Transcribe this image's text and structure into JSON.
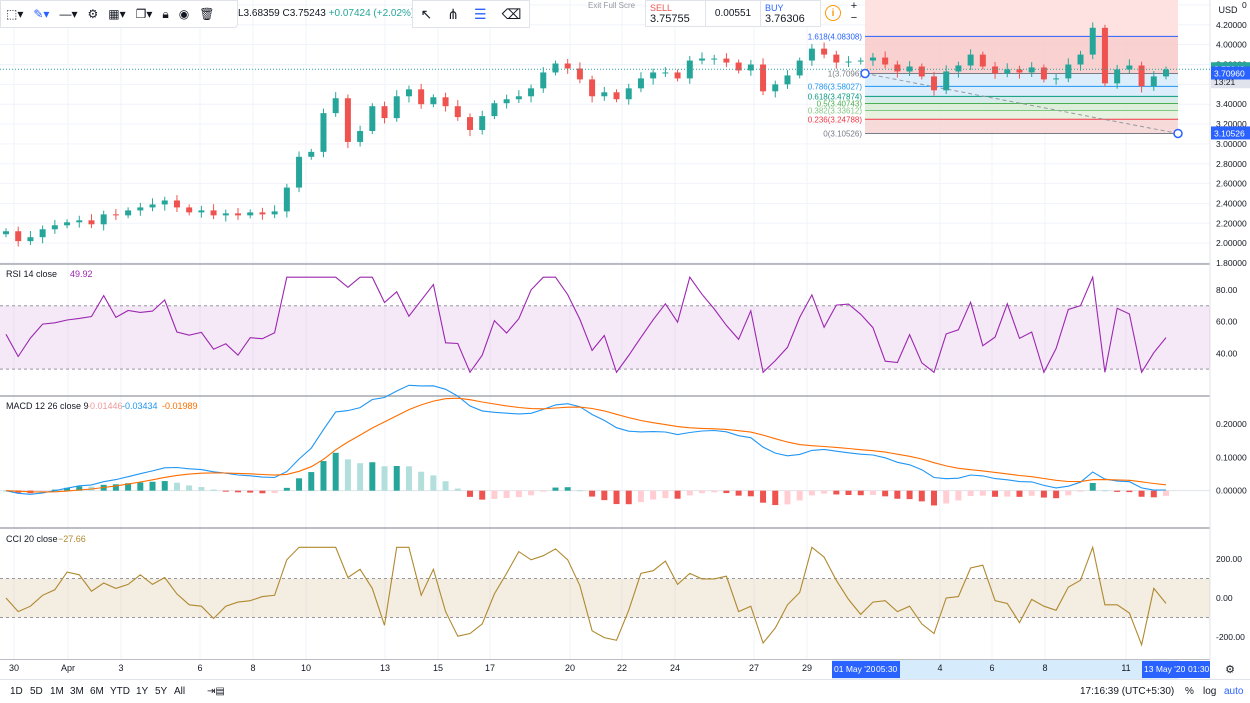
{
  "ohlc": {
    "low": "L3.68359",
    "close": "C3.75243",
    "change": "+0.07424 (+2.02%)"
  },
  "exit_fullscreen": "Exit Full Scre",
  "trade": {
    "sell_label": "SELL",
    "sell_price": "3.75755",
    "spread": "0.00551",
    "buy_label": "BUY",
    "buy_price": "3.76306"
  },
  "toolbar": {
    "zoom_in": "+",
    "zoom_out": "−"
  },
  "currency": "USD",
  "colors": {
    "up": "#26a69a",
    "down": "#ef5350",
    "rsi": "#9c27b0",
    "macd": "#2196f3",
    "signal": "#ff6d00",
    "cci": "#b0892f",
    "fib_blue": "#2962ff",
    "accent": "#2962ff"
  },
  "icons": [
    "crosshair-icon",
    "brush-icon",
    "line-tool-icon",
    "gear-icon",
    "layout-icon",
    "template-icon",
    "lock-icon",
    "eye-icon",
    "trash-icon",
    "cursor-icon",
    "pitchfork-icon",
    "fib-tool-icon",
    "eraser-icon",
    "info-icon",
    "settings-icon"
  ],
  "rsi_label": {
    "name": "RSI 14 close",
    "value": "49.92"
  },
  "macd_label": {
    "name": "MACD 12 26 close 9",
    "hist": "-0.01446",
    "macd": "-0.03434",
    "signal": "-0.01989"
  },
  "cci_label": {
    "name": "CCI 20 close",
    "value": "−27.66"
  },
  "price_axis": {
    "ticks": [
      "4.40000",
      "4.20000",
      "4.00000",
      "3.80000",
      "3.60000",
      "3.40000",
      "3.20000",
      "3.00000",
      "2.80000",
      "2.60000",
      "2.40000",
      "2.20000",
      "2.00000",
      "1.80000"
    ],
    "last_price": "3.75243",
    "countdown": "13:21",
    "fib_price": "3.70960",
    "fib_low": "3.10526"
  },
  "rsi_axis": [
    "80.00",
    "60.00",
    "40.00"
  ],
  "macd_axis": [
    "0.20000",
    "0.10000",
    "0.00000"
  ],
  "cci_axis": [
    "200.00",
    "0.00",
    "-200.00"
  ],
  "fib_levels": [
    {
      "label": "1.618(4.08308)",
      "value": 4.08308,
      "color": "#2962ff"
    },
    {
      "label": "1(3.7096)",
      "value": 3.7096,
      "color": "#787b86"
    },
    {
      "label": "0.786(3.58027)",
      "value": 3.58027,
      "color": "#2196f3"
    },
    {
      "label": "0.618(3.47874)",
      "value": 3.47874,
      "color": "#089981"
    },
    {
      "label": "0.5(3.40743)",
      "value": 3.40743,
      "color": "#4caf50"
    },
    {
      "label": "0.382(3.33612)",
      "value": 3.33612,
      "color": "#81c784"
    },
    {
      "label": "0.236(3.24788)",
      "value": 3.24788,
      "color": "#f23645"
    },
    {
      "label": "0(3.10526)",
      "value": 3.10526,
      "color": "#787b86"
    }
  ],
  "time_axis": {
    "labels": [
      "30",
      "Apr",
      "3",
      "6",
      "8",
      "10",
      "13",
      "15",
      "17",
      "20",
      "22",
      "24",
      "27",
      "29",
      "4",
      "6",
      "8",
      "11"
    ],
    "start_highlight": "01 May '20",
    "start_time": "05:30",
    "end_highlight": "13 May '20",
    "end_time": "01:30"
  },
  "bottom": {
    "ranges": [
      "1D",
      "5D",
      "1M",
      "3M",
      "6M",
      "YTD",
      "1Y",
      "5Y",
      "All"
    ],
    "clock": "17:16:39 (UTC+5:30)",
    "percent": "%",
    "log": "log",
    "auto": "auto"
  },
  "chart_data": {
    "type": "candlestick",
    "ylim": [
      1.8,
      4.45
    ],
    "close": [
      2.12,
      2.02,
      2.06,
      2.14,
      2.18,
      2.21,
      2.23,
      2.19,
      2.29,
      2.28,
      2.33,
      2.36,
      2.39,
      2.43,
      2.36,
      2.31,
      2.33,
      2.28,
      2.3,
      2.28,
      2.31,
      2.29,
      2.32,
      2.56,
      2.87,
      2.92,
      3.31,
      3.46,
      3.02,
      3.13,
      3.38,
      3.26,
      3.48,
      3.55,
      3.4,
      3.47,
      3.38,
      3.27,
      3.14,
      3.28,
      3.41,
      3.45,
      3.48,
      3.56,
      3.72,
      3.81,
      3.76,
      3.65,
      3.48,
      3.52,
      3.45,
      3.56,
      3.66,
      3.72,
      3.72,
      3.66,
      3.84,
      3.86,
      3.86,
      3.82,
      3.74,
      3.8,
      3.53,
      3.6,
      3.69,
      3.84,
      3.96,
      3.9,
      3.82,
      3.83,
      3.84,
      3.87,
      3.8,
      3.73,
      3.78,
      3.68,
      3.54,
      3.73,
      3.79,
      3.9,
      3.78,
      3.71,
      3.75,
      3.72,
      3.77,
      3.65,
      3.66,
      3.8,
      3.9,
      4.17,
      3.61,
      3.75,
      3.79,
      3.58,
      3.68,
      3.75
    ]
  }
}
